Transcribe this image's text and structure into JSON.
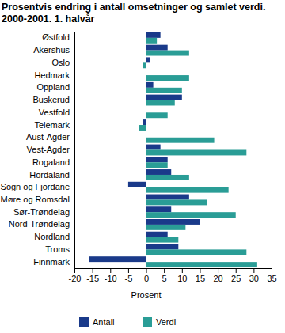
{
  "chart_data": {
    "type": "bar",
    "orientation": "horizontal",
    "title": [
      "Prosentvis endring i antall omsetninger og samlet verdi.",
      "2000-2001. 1. halvår"
    ],
    "x_label": "Prosent",
    "categories": [
      "Østfold",
      "Akershus",
      "Oslo",
      "Hedmark",
      "Oppland",
      "Buskerud",
      "Vestfold",
      "Telemark",
      "Aust-Agder",
      "Vest-Agder",
      "Rogaland",
      "Hordaland",
      "Sogn og Fjordane",
      "Møre og Romsdal",
      "Sør-Trøndelag",
      "Nord-Trøndelag",
      "Nordland",
      "Troms",
      "Finnmark"
    ],
    "series": [
      {
        "name": "Antall",
        "color": "#1a3a8a",
        "values": [
          4,
          6,
          1,
          0,
          2,
          10,
          0,
          -1,
          0,
          4,
          6,
          7,
          -5,
          12,
          7,
          15,
          6,
          9,
          -16
        ]
      },
      {
        "name": "Verdi",
        "color": "#2a9d96",
        "values": [
          3,
          12,
          -1,
          12,
          10,
          8,
          6,
          -2,
          19,
          28,
          6,
          12,
          23,
          17,
          25,
          11,
          9,
          28,
          31
        ]
      }
    ],
    "xlim": [
      -20,
      35
    ],
    "xticks": [
      -20,
      -15,
      -10,
      -5,
      0,
      5,
      10,
      15,
      20,
      25,
      30,
      35
    ],
    "grid": false,
    "legend": "bottom"
  }
}
